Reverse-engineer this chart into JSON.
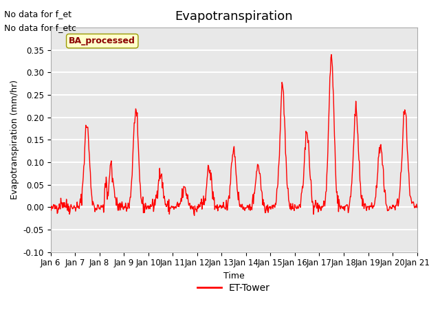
{
  "title": "Evapotranspiration",
  "xlabel": "Time",
  "ylabel": "Evapotranspiration (mm/hr)",
  "ylim": [
    -0.1,
    0.4
  ],
  "yticks": [
    -0.1,
    -0.05,
    0.0,
    0.05,
    0.1,
    0.15,
    0.2,
    0.25,
    0.3,
    0.35
  ],
  "line_color": "red",
  "line_width": 1.0,
  "legend_label": "ET-Tower",
  "legend_line_color": "red",
  "box_label": "BA_processed",
  "annotation1": "No data for f_et",
  "annotation2": "No data for f_etc",
  "x_tick_labels": [
    "Jan 6",
    "Jan 7",
    "Jan 8",
    "Jan 9",
    "Jan 10",
    "Jan 11",
    "Jan 12",
    "Jan 13",
    "Jan 14",
    "Jan 15",
    "Jan 16",
    "Jan 17",
    "Jan 18",
    "Jan 19",
    "Jan 20",
    "Jan 21"
  ],
  "plot_bg_color": "#e8e8e8",
  "grid_color": "white",
  "seed": 42,
  "day_peak_vals": [
    0.01,
    0.185,
    0.072,
    0.215,
    0.075,
    0.04,
    0.085,
    0.13,
    0.095,
    0.27,
    0.17,
    0.335,
    0.215,
    0.135,
    0.215
  ]
}
